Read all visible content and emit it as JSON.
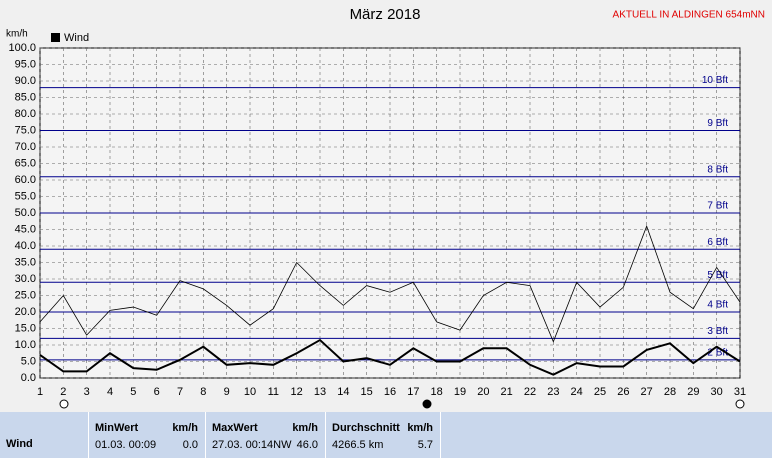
{
  "chart_data": {
    "type": "line",
    "title": "März 2018",
    "subtitle": "AKTUELL IN ALDINGEN 654mNN",
    "y_label": "km/h",
    "x": [
      1,
      2,
      3,
      4,
      5,
      6,
      7,
      8,
      9,
      10,
      11,
      12,
      13,
      14,
      15,
      16,
      17,
      18,
      19,
      20,
      21,
      22,
      23,
      24,
      25,
      26,
      27,
      28,
      29,
      30,
      31
    ],
    "xlim": [
      1,
      31
    ],
    "xticks": [
      1,
      2,
      3,
      4,
      5,
      6,
      7,
      8,
      9,
      10,
      11,
      12,
      13,
      14,
      15,
      16,
      17,
      18,
      19,
      20,
      21,
      22,
      23,
      24,
      25,
      26,
      27,
      28,
      29,
      30,
      31
    ],
    "ylim": [
      0,
      100
    ],
    "yticks": [
      {
        "value": 0,
        "label": "0.0"
      },
      {
        "value": 5,
        "label": "5.0"
      },
      {
        "value": 10,
        "label": "10.0"
      },
      {
        "value": 15,
        "label": "15.0"
      },
      {
        "value": 20,
        "label": "20.0"
      },
      {
        "value": 25,
        "label": "25.0"
      },
      {
        "value": 30,
        "label": "30.0"
      },
      {
        "value": 35,
        "label": "35.0"
      },
      {
        "value": 40,
        "label": "40.0"
      },
      {
        "value": 45,
        "label": "45.0"
      },
      {
        "value": 50,
        "label": "50.0"
      },
      {
        "value": 55,
        "label": "55.0"
      },
      {
        "value": 60,
        "label": "60.0"
      },
      {
        "value": 65,
        "label": "65.0"
      },
      {
        "value": 70,
        "label": "70.0"
      },
      {
        "value": 75,
        "label": "75.0"
      },
      {
        "value": 80,
        "label": "80.0"
      },
      {
        "value": 85,
        "label": "85.0"
      },
      {
        "value": 90,
        "label": "90.0"
      },
      {
        "value": 95,
        "label": "95.0"
      },
      {
        "value": 100,
        "label": "100.0"
      }
    ],
    "grid": true,
    "reference_lines": [
      {
        "value": 5.5,
        "label": "2 Bft"
      },
      {
        "value": 12,
        "label": "3 Bft"
      },
      {
        "value": 20,
        "label": "4 Bft"
      },
      {
        "value": 29,
        "label": "5 Bft"
      },
      {
        "value": 39,
        "label": "6 Bft"
      },
      {
        "value": 50,
        "label": "7 Bft"
      },
      {
        "value": 61,
        "label": "8 Bft"
      },
      {
        "value": 75,
        "label": "9 Bft"
      },
      {
        "value": 88,
        "label": "10 Bft"
      }
    ],
    "series": [
      {
        "color": "#000000",
        "values": [
          17,
          25,
          13,
          20.5,
          21.5,
          19,
          29.5,
          27,
          22,
          16,
          21,
          35,
          28,
          22,
          28,
          26,
          29,
          17,
          14.5,
          25,
          29,
          28,
          11,
          29,
          21.5,
          27.5,
          46,
          26,
          21,
          33.5,
          23
        ]
      },
      {
        "name": "Wind",
        "color": "#000000",
        "values": [
          7,
          2,
          2,
          7.5,
          3,
          2.5,
          5.5,
          9.5,
          4,
          4.5,
          4,
          7.5,
          11.5,
          5,
          6,
          4,
          9,
          5,
          5,
          9,
          9,
          4,
          1,
          4.5,
          3.5,
          3.5,
          8.5,
          10.5,
          4.5,
          9.5,
          5
        ]
      }
    ]
  },
  "table": {
    "row_label": "Wind",
    "headers": [
      [
        "MinWert",
        "km/h"
      ],
      [
        "MaxWert",
        "km/h"
      ],
      [
        "Durchschnitt",
        "km/h"
      ]
    ],
    "cells": [
      [
        "01.03.  00:09",
        "0.0"
      ],
      [
        "27.03.  00:14NW",
        "46.0"
      ],
      [
        "4266.5 km",
        "5.7"
      ]
    ]
  }
}
